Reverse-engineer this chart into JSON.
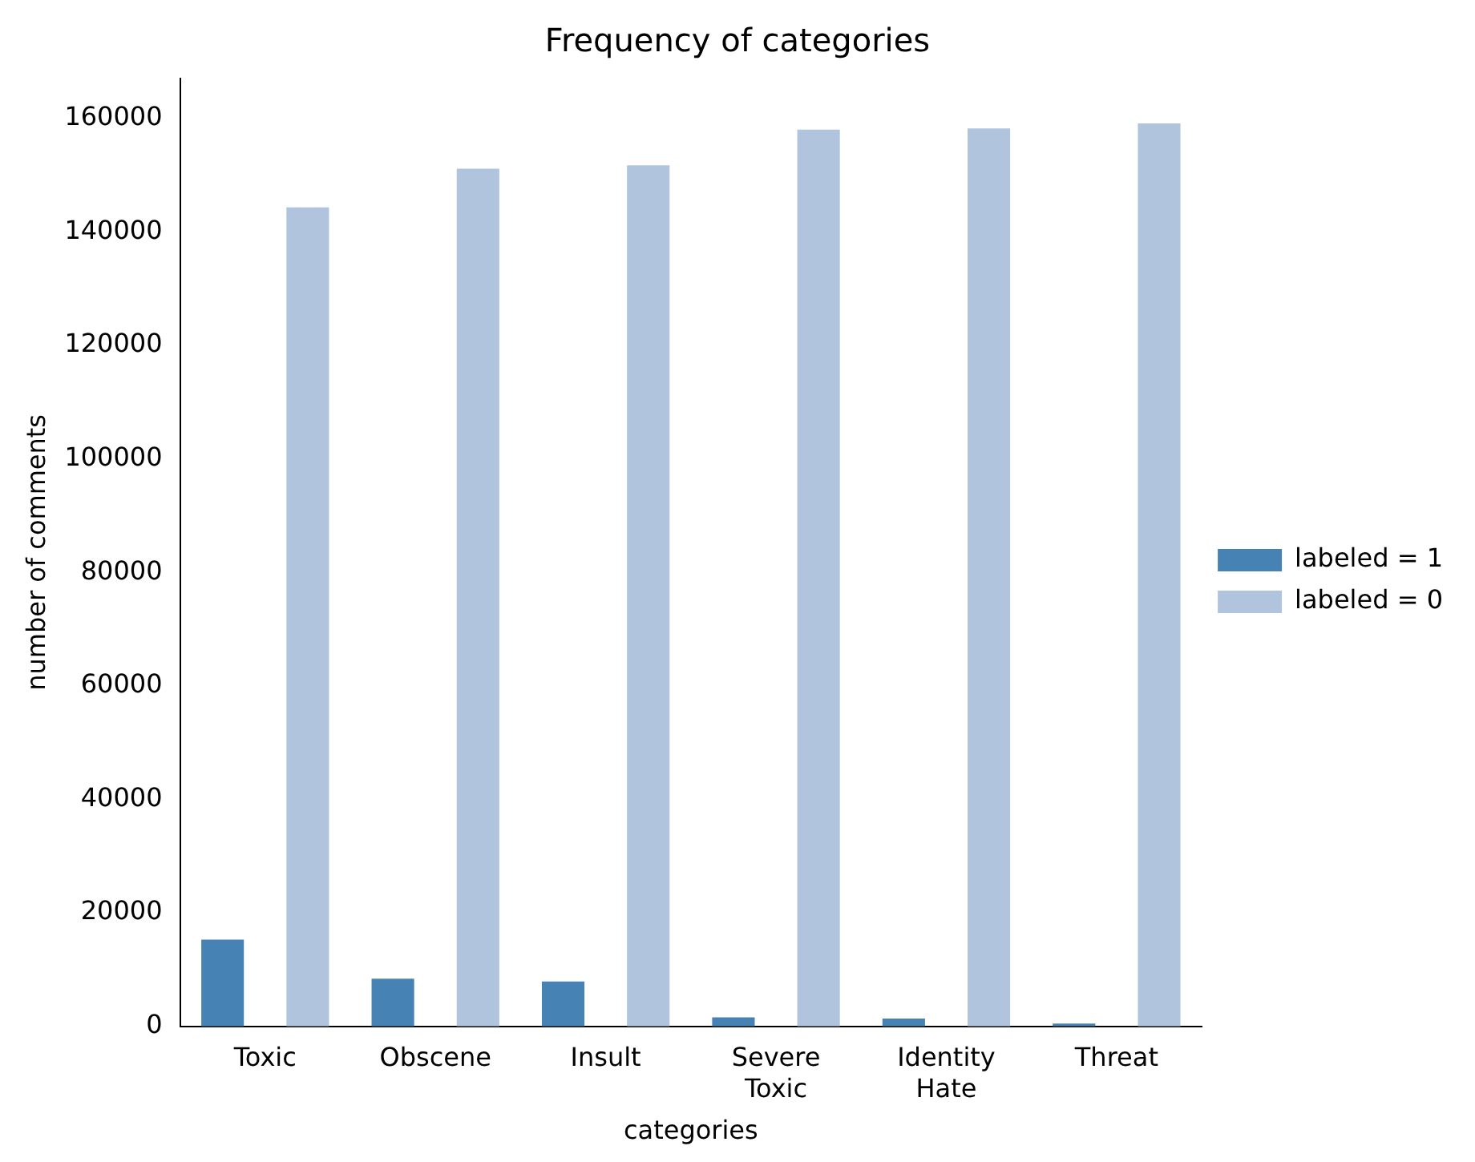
{
  "chart_data": {
    "type": "bar",
    "title": "Frequency of categories",
    "xlabel": "categories",
    "ylabel": "number of comments",
    "categories": [
      "Toxic",
      "Obscene",
      "Insult",
      "Severe Toxic",
      "Identity Hate",
      "Threat"
    ],
    "series": [
      {
        "name": "labeled = 1",
        "color": "#4682b4",
        "values": [
          15300,
          8400,
          7900,
          1600,
          1400,
          500
        ]
      },
      {
        "name": "labeled = 0",
        "color": "#b0c4de",
        "values": [
          144300,
          151100,
          151700,
          158000,
          158200,
          159100
        ]
      }
    ],
    "ylim": [
      0,
      167000
    ],
    "yticks": [
      0,
      20000,
      40000,
      60000,
      80000,
      100000,
      120000,
      140000,
      160000
    ],
    "grid": false,
    "legend": "right"
  }
}
